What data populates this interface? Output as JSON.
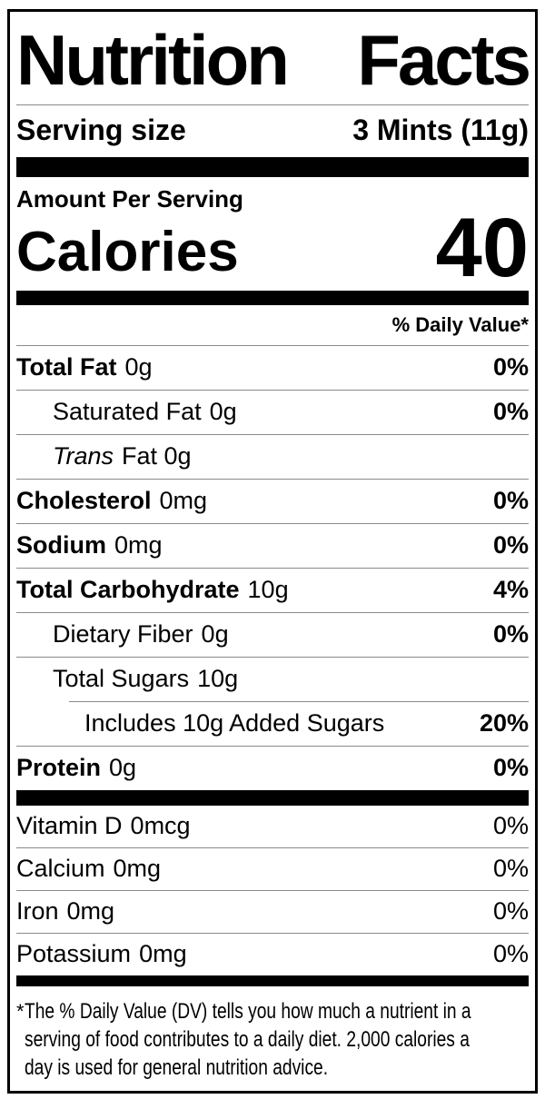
{
  "label": {
    "title": {
      "word1": "Nutrition",
      "word2": "Facts"
    },
    "serving_size": {
      "label": "Serving size",
      "value": "3 Mints (11g)"
    },
    "amount_per_serving": "Amount Per Serving",
    "calories": {
      "label": "Calories",
      "value": "40"
    },
    "daily_value_header": "% Daily Value*",
    "nutrients": [
      {
        "name": "Total Fat",
        "amount": "0g",
        "daily_value": "0%"
      },
      {
        "name": "Saturated Fat",
        "amount": "0g",
        "daily_value": "0%"
      },
      {
        "name": "Trans",
        "amount": "Fat 0g",
        "daily_value": ""
      },
      {
        "name": "Cholesterol",
        "amount": "0mg",
        "daily_value": "0%"
      },
      {
        "name": "Sodium",
        "amount": "0mg",
        "daily_value": "0%"
      },
      {
        "name": "Total Carbohydrate",
        "amount": "10g",
        "daily_value": "4%"
      },
      {
        "name": "Dietary Fiber",
        "amount": "0g",
        "daily_value": "0%"
      },
      {
        "name": "Total Sugars",
        "amount": "10g",
        "daily_value": ""
      },
      {
        "name": "Includes 10g Added Sugars",
        "amount": "",
        "daily_value": "20%"
      },
      {
        "name": "Protein",
        "amount": "0g",
        "daily_value": "0%"
      }
    ],
    "vitamins": [
      {
        "name": "Vitamin D",
        "amount": "0mcg",
        "daily_value": "0%"
      },
      {
        "name": "Calcium",
        "amount": "0mg",
        "daily_value": "0%"
      },
      {
        "name": "Iron",
        "amount": "0mg",
        "daily_value": "0%"
      },
      {
        "name": "Potassium",
        "amount": "0mg",
        "daily_value": "0%"
      }
    ],
    "footnote": {
      "marker": "*",
      "lines": [
        "The % Daily Value (DV) tells you how much a nutrient in a",
        "serving of food contributes to a daily diet. 2,000 calories a",
        "day is used for general nutrition advice."
      ]
    },
    "colors": {
      "text": "#000000",
      "background": "#ffffff",
      "section_bar": "#000000",
      "hairline": "#8a8a8a"
    }
  }
}
